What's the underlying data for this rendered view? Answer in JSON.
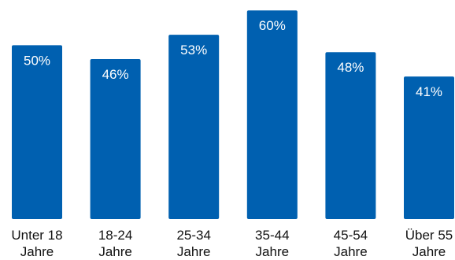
{
  "chart_data": {
    "type": "bar",
    "categories": [
      [
        "Unter 18",
        "Jahre"
      ],
      [
        "18-24",
        "Jahre"
      ],
      [
        "25-34",
        "Jahre"
      ],
      [
        "35-44",
        "Jahre"
      ],
      [
        "45-54",
        "Jahre"
      ],
      [
        "Über 55",
        "Jahre"
      ]
    ],
    "values": [
      50,
      46,
      53,
      60,
      48,
      41
    ],
    "value_labels": [
      "50%",
      "46%",
      "53%",
      "60%",
      "48%",
      "41%"
    ],
    "unit": "%",
    "bar_color": "#0060b0",
    "ylim": [
      0,
      63
    ],
    "grid": false,
    "legend": "none"
  }
}
